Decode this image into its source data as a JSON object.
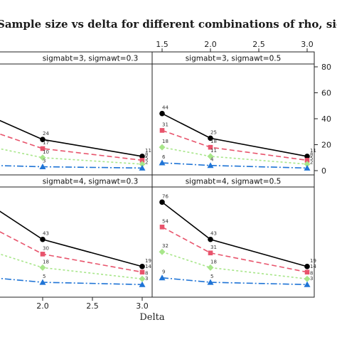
{
  "title": "Sample size vs delta for different combinations of rho, sigmabt and sigmawt",
  "chart_data": {
    "type": "line",
    "xlabel": "Delta",
    "ylabel": "",
    "xlim": [
      1.5,
      3.0
    ],
    "ylim": [
      0,
      80
    ],
    "xticks": [
      "1.5",
      "2.0",
      "2.5",
      "3.0"
    ],
    "yticks": [
      "0",
      "20",
      "40",
      "60",
      "80"
    ],
    "x": [
      1.5,
      2.0,
      3.0
    ],
    "series_styles": [
      {
        "color": "#000000",
        "dash": "",
        "marker": "circle"
      },
      {
        "color": "#e8546c",
        "dash": "7,4",
        "marker": "square"
      },
      {
        "color": "#a8e68a",
        "dash": "3,3",
        "marker": "diamond"
      },
      {
        "color": "#1f74d6",
        "dash": "9,3,2,3",
        "marker": "triangle"
      }
    ],
    "panels": [
      {
        "label": "sigmabt=3, sigmawt=0.3",
        "series": [
          {
            "values": [
              41,
              24,
              11
            ],
            "labels": [
              "",
              "24",
              "11"
            ]
          },
          {
            "values": [
              30,
              17,
              8
            ],
            "labels": [
              "",
              "17",
              "8"
            ]
          },
          {
            "values": [
              18,
              10,
              5
            ],
            "labels": [
              "",
              "10",
              "5"
            ]
          },
          {
            "values": [
              4,
              3,
              2
            ],
            "labels": [
              "",
              "3",
              "2"
            ]
          }
        ]
      },
      {
        "label": "sigmabt=3, sigmawt=0.5",
        "series": [
          {
            "values": [
              44,
              25,
              11
            ],
            "labels": [
              "44",
              "25",
              "11"
            ]
          },
          {
            "values": [
              31,
              18,
              8
            ],
            "labels": [
              "31",
              "18",
              "8"
            ]
          },
          {
            "values": [
              18,
              11,
              5
            ],
            "labels": [
              "18",
              "11",
              "5"
            ]
          },
          {
            "values": [
              6,
              4,
              2
            ],
            "labels": [
              "6",
              "4",
              "2"
            ]
          }
        ]
      },
      {
        "label": "sigmabt=4, sigmawt=0.3",
        "series": [
          {
            "values": [
              72,
              43,
              19
            ],
            "labels": [
              "",
              "43",
              "19"
            ]
          },
          {
            "values": [
              53,
              30,
              14
            ],
            "labels": [
              "",
              "30",
              "14"
            ]
          },
          {
            "values": [
              32,
              18,
              8
            ],
            "labels": [
              "",
              "18",
              "8"
            ]
          },
          {
            "values": [
              9,
              5,
              3
            ],
            "labels": [
              "",
              "5",
              "3"
            ]
          }
        ]
      },
      {
        "label": "sigmabt=4, sigmawt=0.5",
        "series": [
          {
            "values": [
              76,
              43,
              19
            ],
            "labels": [
              "76",
              "43",
              "19"
            ]
          },
          {
            "values": [
              54,
              31,
              14
            ],
            "labels": [
              "54",
              "31",
              "14"
            ]
          },
          {
            "values": [
              32,
              18,
              8
            ],
            "labels": [
              "32",
              "18",
              "8"
            ]
          },
          {
            "values": [
              9,
              5,
              3
            ],
            "labels": [
              "9",
              "5",
              "3"
            ]
          }
        ]
      }
    ]
  }
}
